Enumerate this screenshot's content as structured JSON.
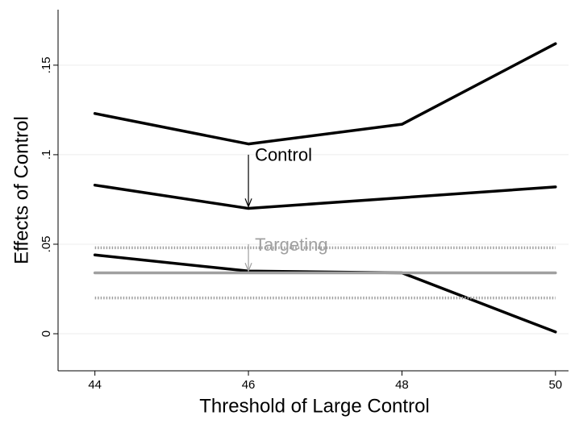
{
  "chart_data": {
    "type": "line",
    "xlabel": "Threshold of Large Control",
    "ylabel": "Effects of Control",
    "x": [
      44,
      46,
      48,
      50
    ],
    "series": [
      {
        "color": "#000000",
        "line_style": "solid",
        "values": [
          0.123,
          0.106,
          0.117,
          0.162
        ]
      },
      {
        "color": "#000000",
        "line_style": "solid",
        "values": [
          0.083,
          0.07,
          0.076,
          0.082
        ]
      },
      {
        "color": "#000000",
        "line_style": "solid",
        "values": [
          0.044,
          0.035,
          0.034,
          0.001
        ]
      },
      {
        "color": "#a0a0a0",
        "line_style": "dotted",
        "values": [
          0.048,
          0.048,
          0.048,
          0.048
        ]
      },
      {
        "color": "#a0a0a0",
        "line_style": "solid",
        "values": [
          0.034,
          0.034,
          0.034,
          0.034
        ]
      },
      {
        "color": "#a0a0a0",
        "line_style": "dotted",
        "values": [
          0.02,
          0.02,
          0.02,
          0.02
        ]
      }
    ],
    "annotations": [
      {
        "text": "Control",
        "color": "#000000",
        "x": 46,
        "y": 0.1,
        "y_end": 0.071
      },
      {
        "text": "Targeting",
        "color": "#a0a0a0",
        "x": 46,
        "y": 0.05,
        "y_end": 0.035
      }
    ],
    "xlim": [
      43.52,
      50.17
    ],
    "ylim": [
      -0.0207,
      0.181
    ],
    "xticks": [
      44,
      46,
      48,
      50
    ],
    "yticks": [
      0,
      {
        "value": 0.05,
        "label": ".05"
      },
      {
        "value": 0.1,
        "label": ".1"
      },
      {
        "value": 0.15,
        "label": ".15"
      }
    ],
    "grid": true
  }
}
